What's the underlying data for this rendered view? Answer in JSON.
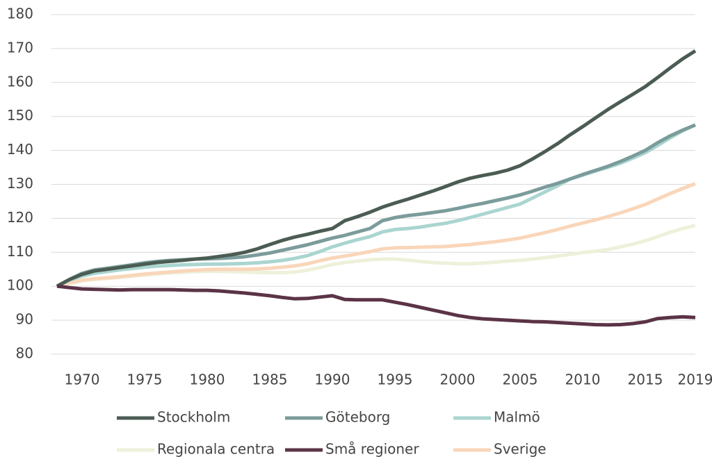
{
  "chart_data": {
    "type": "line",
    "x": [
      1968,
      1969,
      1970,
      1971,
      1972,
      1973,
      1974,
      1975,
      1976,
      1977,
      1978,
      1979,
      1980,
      1981,
      1982,
      1983,
      1984,
      1985,
      1986,
      1987,
      1988,
      1989,
      1990,
      1991,
      1992,
      1993,
      1994,
      1995,
      1996,
      1997,
      1998,
      1999,
      2000,
      2001,
      2002,
      2003,
      2004,
      2005,
      2006,
      2007,
      2008,
      2009,
      2010,
      2011,
      2012,
      2013,
      2014,
      2015,
      2016,
      2017,
      2018,
      2019
    ],
    "series": [
      {
        "name": "Stockholm",
        "color": "#4b5c53",
        "values": [
          100,
          102,
          103.5,
          104.5,
          105,
          105.5,
          106,
          106.5,
          107,
          107.3,
          107.6,
          108,
          108.3,
          108.8,
          109.3,
          110,
          111,
          112.3,
          113.5,
          114.5,
          115.3,
          116.2,
          117,
          119.3,
          120.5,
          121.8,
          123.3,
          124.5,
          125.6,
          126.8,
          128,
          129.3,
          130.7,
          131.8,
          132.6,
          133.3,
          134.2,
          135.5,
          137.5,
          139.7,
          142,
          144.6,
          147,
          149.5,
          152,
          154.3,
          156.5,
          158.8,
          161.5,
          164.3,
          167,
          169.3
        ]
      },
      {
        "name": "Göteborg",
        "color": "#7b9c9b",
        "values": [
          100,
          102,
          103.8,
          104.8,
          105.3,
          105.8,
          106.3,
          106.9,
          107.3,
          107.6,
          107.8,
          108,
          108.1,
          108.2,
          108.4,
          108.7,
          109.2,
          109.8,
          110.6,
          111.4,
          112.2,
          113.2,
          114.2,
          115,
          116,
          117,
          119.3,
          120.2,
          120.8,
          121.2,
          121.7,
          122.2,
          122.9,
          123.7,
          124.4,
          125.2,
          126,
          126.9,
          128,
          129.2,
          130.3,
          131.6,
          132.9,
          134.1,
          135.3,
          136.7,
          138.3,
          140,
          142.3,
          144.3,
          146,
          147.5
        ]
      },
      {
        "name": "Malmö",
        "color": "#aad5d1",
        "values": [
          100,
          101.8,
          103,
          103.8,
          104.3,
          104.8,
          105.2,
          105.6,
          105.9,
          106.1,
          106.3,
          106.4,
          106.5,
          106.5,
          106.6,
          106.7,
          106.9,
          107.2,
          107.6,
          108.2,
          109,
          110.2,
          111.6,
          112.7,
          113.7,
          114.6,
          116,
          116.7,
          117,
          117.4,
          118,
          118.5,
          119.3,
          120.2,
          121.2,
          122.2,
          123.2,
          124.2,
          126,
          127.8,
          129.6,
          131.6,
          132.7,
          133.9,
          135,
          136.2,
          137.7,
          139.3,
          141.5,
          143.7,
          145.8,
          147.5
        ]
      },
      {
        "name": "Regionala centra",
        "color": "#eef0da",
        "values": [
          100,
          100.8,
          101.5,
          102,
          102.3,
          102.6,
          103,
          103.3,
          103.6,
          103.9,
          104.1,
          104.3,
          104.4,
          104.4,
          104.3,
          104.2,
          104.1,
          104,
          104,
          104.2,
          104.7,
          105.5,
          106.4,
          107,
          107.4,
          107.8,
          108,
          108,
          107.7,
          107.3,
          107,
          106.8,
          106.6,
          106.6,
          106.8,
          107.1,
          107.4,
          107.6,
          108,
          108.4,
          108.9,
          109.4,
          109.9,
          110.3,
          110.8,
          111.6,
          112.4,
          113.4,
          114.6,
          115.9,
          117,
          117.9
        ]
      },
      {
        "name": "Små regioner",
        "color": "#5b3347",
        "values": [
          100,
          99.6,
          99.2,
          99.1,
          99,
          98.9,
          99,
          99,
          99,
          99,
          98.9,
          98.8,
          98.8,
          98.6,
          98.3,
          98,
          97.6,
          97.2,
          96.7,
          96.3,
          96.4,
          96.8,
          97.2,
          96.1,
          96,
          96,
          96,
          95.3,
          94.6,
          93.8,
          93,
          92.2,
          91.4,
          90.8,
          90.4,
          90.2,
          90,
          89.8,
          89.6,
          89.5,
          89.3,
          89.1,
          88.9,
          88.7,
          88.6,
          88.7,
          89,
          89.5,
          90.5,
          90.8,
          91,
          90.8
        ]
      },
      {
        "name": "Sverige",
        "color": "#f9d6ba",
        "values": [
          100,
          101,
          101.8,
          102.2,
          102.5,
          102.8,
          103.2,
          103.6,
          103.9,
          104.2,
          104.5,
          104.7,
          104.9,
          105,
          105,
          105,
          105.1,
          105.3,
          105.6,
          106,
          106.6,
          107.5,
          108.3,
          108.9,
          109.5,
          110.2,
          111,
          111.3,
          111.4,
          111.5,
          111.6,
          111.7,
          112,
          112.3,
          112.7,
          113.1,
          113.6,
          114.2,
          115,
          115.8,
          116.7,
          117.7,
          118.6,
          119.5,
          120.5,
          121.6,
          122.8,
          124.1,
          125.7,
          127.3,
          128.8,
          130.2
        ]
      }
    ],
    "xlim": [
      1968,
      2019
    ],
    "xticks": [
      1970,
      1975,
      1980,
      1985,
      1990,
      1995,
      2000,
      2005,
      2010,
      2015,
      2019
    ],
    "ylim": [
      80,
      180
    ],
    "yticks": [
      80,
      90,
      100,
      110,
      120,
      130,
      140,
      150,
      160,
      170,
      180
    ],
    "grid": true
  }
}
